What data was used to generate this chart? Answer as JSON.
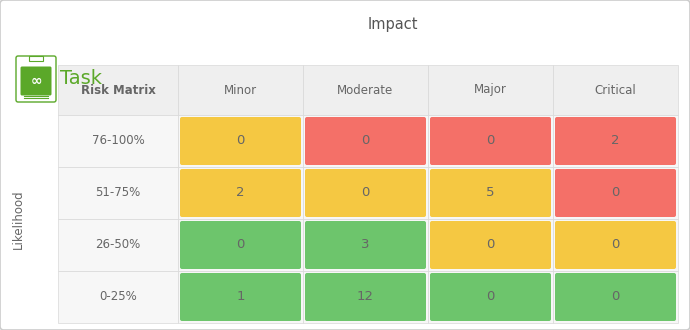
{
  "title": "Impact",
  "col_labels": [
    "Minor",
    "Moderate",
    "Major",
    "Critical"
  ],
  "row_labels": [
    "76-100%",
    "51-75%",
    "26-50%",
    "0-25%"
  ],
  "row_header": "Risk Matrix",
  "y_axis_label": "Likelihood",
  "values": [
    [
      0,
      0,
      0,
      2
    ],
    [
      2,
      0,
      5,
      0
    ],
    [
      0,
      3,
      0,
      0
    ],
    [
      1,
      12,
      0,
      0
    ]
  ],
  "colors": [
    [
      "#F5C842",
      "#F47068",
      "#F47068",
      "#F47068"
    ],
    [
      "#F5C842",
      "#F5C842",
      "#F5C842",
      "#F47068"
    ],
    [
      "#6DC56C",
      "#6DC56C",
      "#F5C842",
      "#F5C842"
    ],
    [
      "#6DC56C",
      "#6DC56C",
      "#6DC56C",
      "#6DC56C"
    ]
  ],
  "bg_color": "#FFFFFF",
  "header_bg": "#EFEFEF",
  "row_label_bg": "#F7F7F7",
  "border_color": "#D8D8D8",
  "text_color": "#666666",
  "cell_text_color": "#666666",
  "title_color": "#555555",
  "logo_green": "#5BA829",
  "logo_text": "Task",
  "title_fontsize": 10.5,
  "label_fontsize": 8.5,
  "cell_fontsize": 9.5,
  "logo_fontsize": 14
}
